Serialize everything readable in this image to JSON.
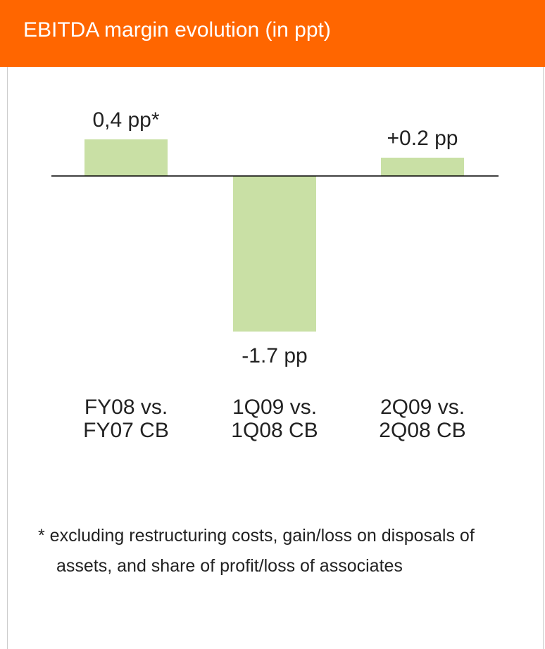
{
  "chart_data": {
    "type": "bar",
    "title": "EBITDA margin evolution (in ppt)",
    "categories": [
      "FY08 vs. FY07 CB",
      "1Q09 vs. 1Q08 CB",
      "2Q09 vs. 2Q08 CB"
    ],
    "values": [
      0.4,
      -1.7,
      0.2
    ],
    "value_labels": [
      "0,4 pp*",
      "-1.7 pp",
      "+0.2 pp"
    ],
    "color": "#c9e0a5",
    "note": "* excluding restructuring costs, gain/loss on disposals of assets, and share of profit/loss of associates"
  }
}
